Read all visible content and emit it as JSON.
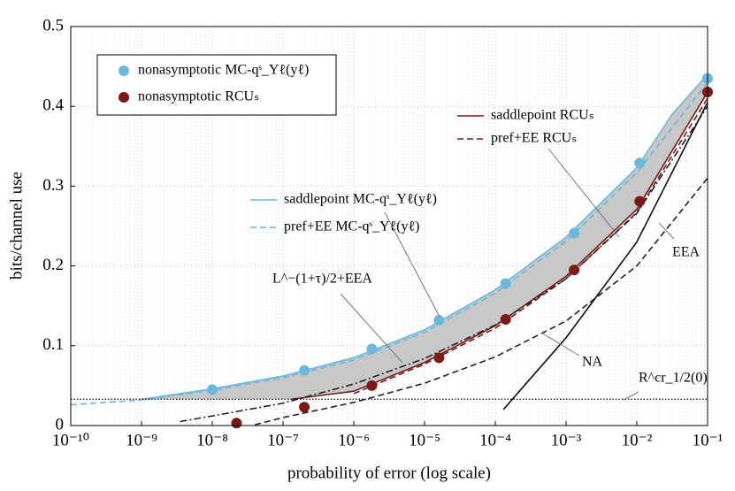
{
  "chart_data": {
    "type": "line",
    "x_label": "probability of error (log scale)",
    "y_label": "bits/channel use",
    "xscale": "log",
    "xlim": [
      1e-10,
      0.1
    ],
    "xticks": [
      {
        "value": 1e-10,
        "label": "10⁻¹⁰"
      },
      {
        "value": 1e-09,
        "label": "10⁻⁹"
      },
      {
        "value": 1e-08,
        "label": "10⁻⁸"
      },
      {
        "value": 1e-07,
        "label": "10⁻⁷"
      },
      {
        "value": 1e-06,
        "label": "10⁻⁶"
      },
      {
        "value": 1e-05,
        "label": "10⁻⁵"
      },
      {
        "value": 0.0001,
        "label": "10⁻⁴"
      },
      {
        "value": 0.001,
        "label": "10⁻³"
      },
      {
        "value": 0.01,
        "label": "10⁻²"
      },
      {
        "value": 0.1,
        "label": "10⁻¹"
      }
    ],
    "ylim": [
      0,
      0.5
    ],
    "yticks": [
      0,
      0.1,
      0.2,
      0.3,
      0.4,
      0.5
    ],
    "grid": true,
    "shade_color": "#c8c8c8",
    "series": [
      {
        "name": "nonasymptotic MC-qˢ_Yℓ(yℓ)",
        "color": "#6ab8dc",
        "style": "markers",
        "x": [
          1e-08,
          2e-07,
          1.8e-06,
          1.6e-05,
          0.00014,
          0.0013,
          0.011,
          0.1
        ],
        "values": [
          0.045,
          0.069,
          0.096,
          0.132,
          0.178,
          0.241,
          0.329,
          0.435
        ]
      },
      {
        "name": "nonasymptotic RCUₛ",
        "color": "#7b1a1a",
        "style": "markers",
        "x": [
          2.2e-08,
          2e-07,
          1.8e-06,
          1.6e-05,
          0.00014,
          0.0013,
          0.011,
          0.1
        ],
        "values": [
          0.003,
          0.023,
          0.05,
          0.085,
          0.133,
          0.195,
          0.281,
          0.418
        ]
      },
      {
        "name": "saddlepoint MC-qˢ_Yℓ(yℓ)",
        "color": "#6ab8dc",
        "style": "solid",
        "x": [
          1e-09,
          1e-08,
          1e-07,
          1e-06,
          1e-05,
          0.0001,
          0.001,
          0.01,
          0.0316,
          0.1
        ],
        "values": [
          0.033,
          0.046,
          0.062,
          0.085,
          0.12,
          0.17,
          0.236,
          0.323,
          0.39,
          0.44
        ]
      },
      {
        "name": "pref+EE MC-qˢ_Yℓ(yℓ)",
        "color": "#6ab8dc",
        "style": "dashed",
        "x": [
          1e-10,
          1e-09,
          1e-08,
          1e-07,
          1e-06,
          1e-05,
          0.0001,
          0.001,
          0.01,
          0.1
        ],
        "values": [
          0.026,
          0.032,
          0.044,
          0.06,
          0.082,
          0.117,
          0.166,
          0.231,
          0.317,
          0.43
        ]
      },
      {
        "name": "saddlepoint RCUₛ",
        "color": "#7b1a1a",
        "style": "solid",
        "x": [
          1.3e-07,
          1e-06,
          1e-05,
          0.0001,
          0.001,
          0.01,
          0.1
        ],
        "values": [
          0.033,
          0.043,
          0.079,
          0.125,
          0.187,
          0.271,
          0.418
        ]
      },
      {
        "name": "pref+EE RCUₛ",
        "color": "#7b1a1a",
        "style": "dashed",
        "x": [
          1e-06,
          1e-05,
          0.0001,
          0.001,
          0.01,
          0.1
        ],
        "values": [
          0.04,
          0.077,
          0.122,
          0.184,
          0.267,
          0.41
        ]
      },
      {
        "name": "L^−(1+τ)/2+EEA",
        "color": "#222222",
        "style": "dashdot",
        "x": [
          3.5e-09,
          1e-08,
          1e-07,
          1e-06,
          1e-05,
          0.0001,
          0.001,
          0.01,
          0.1
        ],
        "values": [
          0.005,
          0.012,
          0.028,
          0.052,
          0.084,
          0.126,
          0.184,
          0.266,
          0.4
        ]
      },
      {
        "name": "EEA",
        "color": "#222222",
        "style": "dashed",
        "x": [
          4e-08,
          1e-07,
          1e-06,
          1e-05,
          0.0001,
          0.001,
          0.01,
          0.1
        ],
        "values": [
          0.001,
          0.01,
          0.029,
          0.053,
          0.086,
          0.131,
          0.2,
          0.31
        ]
      },
      {
        "name": "NA",
        "color": "#111111",
        "style": "solid",
        "x": [
          0.00013,
          0.001,
          0.01,
          0.1
        ],
        "values": [
          0.02,
          0.11,
          0.23,
          0.405
        ]
      },
      {
        "name": "R^cr_1/2(0)",
        "color": "#111111",
        "style": "dotted",
        "x": [
          1e-10,
          0.1
        ],
        "values": [
          0.033,
          0.033
        ]
      }
    ]
  }
}
